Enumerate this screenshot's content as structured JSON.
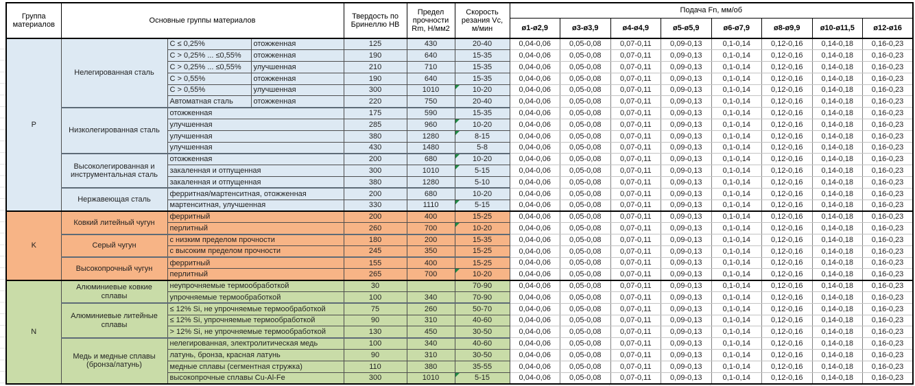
{
  "header": {
    "group": "Группа материалов",
    "main": "Основные группы материалов",
    "hardness": "Твердость по Бринеллю HB",
    "strength": "Предел прочности Rm, Н/мм2",
    "speed": "Скорость резания Vc, м/мин",
    "feed_title": "Подача Fn, мм/об",
    "feed_cols": [
      "ø1-ø2,9",
      "ø3-ø3,9",
      "ø4-ø4,9",
      "ø5-ø5,9",
      "ø6-ø7,9",
      "ø8-ø9,9",
      "ø10-ø11,5",
      "ø12-ø16"
    ]
  },
  "feed_values": [
    "0,04-0,06",
    "0,05-0,08",
    "0,07-0,11",
    "0,09-0,13",
    "0,1-0,14",
    "0,12-0,16",
    "0,14-0,18",
    "0,16-0,23"
  ],
  "colors": {
    "P": "#DDE9F3",
    "K": "#F7B486",
    "N": "#C9DCA8",
    "error_indicator": "#1F8A44"
  },
  "groups": [
    {
      "label": "P",
      "color": "#DDE9F3",
      "blocks": [
        {
          "name": "Нелегированная сталь",
          "rows": [
            {
              "d": [
                "C ≤ 0,25%",
                "отожженная"
              ],
              "hb": "125",
              "rm": "430",
              "vc": "20-40",
              "t": false
            },
            {
              "d": [
                "C > 0,25% ... ≤0,55%",
                "отожженная"
              ],
              "hb": "190",
              "rm": "640",
              "vc": "15-35",
              "t": false
            },
            {
              "d": [
                "C > 0,25% ... ≤0,55%",
                "улучшенная"
              ],
              "hb": "210",
              "rm": "710",
              "vc": "15-35",
              "t": false
            },
            {
              "d": [
                "C > 0,55%",
                "отожженная"
              ],
              "hb": "190",
              "rm": "640",
              "vc": "15-35",
              "t": false
            },
            {
              "d": [
                "C > 0,55%",
                "улучшенная"
              ],
              "hb": "300",
              "rm": "1010",
              "vc": "10-20",
              "t": true
            },
            {
              "d": [
                "Автоматная сталь",
                "отожженная"
              ],
              "hb": "220",
              "rm": "750",
              "vc": "20-40",
              "t": false
            }
          ]
        },
        {
          "name": "Низколегированная сталь",
          "rows": [
            {
              "d": [
                "отожженная"
              ],
              "hb": "175",
              "rm": "590",
              "vc": "15-35",
              "t": false
            },
            {
              "d": [
                "улучшенная"
              ],
              "hb": "285",
              "rm": "960",
              "vc": "10-20",
              "t": true
            },
            {
              "d": [
                "улучшенная"
              ],
              "hb": "380",
              "rm": "1280",
              "vc": "8-15",
              "t": true
            },
            {
              "d": [
                "улучшенная"
              ],
              "hb": "430",
              "rm": "1480",
              "vc": "5-8",
              "t": false
            }
          ]
        },
        {
          "name": "Высоколегированная и инструментальная сталь",
          "rows": [
            {
              "d": [
                "отожженная"
              ],
              "hb": "200",
              "rm": "680",
              "vc": "10-20",
              "t": true
            },
            {
              "d": [
                "закаленная и отпущенная"
              ],
              "hb": "300",
              "rm": "1010",
              "vc": "5-15",
              "t": true
            },
            {
              "d": [
                "закаленная и отпущенная"
              ],
              "hb": "380",
              "rm": "1280",
              "vc": "5-10",
              "t": false
            }
          ]
        },
        {
          "name": "Нержавеющая сталь",
          "rows": [
            {
              "d": [
                "ферритная/мартенситная, отожженная"
              ],
              "hb": "200",
              "rm": "680",
              "vc": "10-20",
              "t": false
            },
            {
              "d": [
                "мартенситная, улучшенная"
              ],
              "hb": "330",
              "rm": "1110",
              "vc": "5-15",
              "t": true
            }
          ]
        }
      ]
    },
    {
      "label": "K",
      "color": "#F7B486",
      "blocks": [
        {
          "name": "Ковкий литейный чугун",
          "rows": [
            {
              "d": [
                "ферритный"
              ],
              "hb": "200",
              "rm": "400",
              "vc": "15-25",
              "t": false
            },
            {
              "d": [
                "перлитный"
              ],
              "hb": "260",
              "rm": "700",
              "vc": "10-20",
              "t": true
            }
          ]
        },
        {
          "name": "Серый чугун",
          "rows": [
            {
              "d": [
                "с низким пределом прочности"
              ],
              "hb": "180",
              "rm": "200",
              "vc": "15-35",
              "t": false
            },
            {
              "d": [
                "с высоким пределом прочности"
              ],
              "hb": "245",
              "rm": "350",
              "vc": "15-25",
              "t": false
            }
          ]
        },
        {
          "name": "Высокопрочный чугун",
          "rows": [
            {
              "d": [
                "ферритный"
              ],
              "hb": "155",
              "rm": "400",
              "vc": "15-25",
              "t": false
            },
            {
              "d": [
                "перлитный"
              ],
              "hb": "265",
              "rm": "700",
              "vc": "10-20",
              "t": true
            }
          ]
        }
      ]
    },
    {
      "label": "N",
      "color": "#C9DCA8",
      "blocks": [
        {
          "name": "Алюминиевые ковкие сплавы",
          "rows": [
            {
              "d": [
                "неупрочняемые термообработкой"
              ],
              "hb": "30",
              "rm": "",
              "vc": "70-90",
              "t": false
            },
            {
              "d": [
                "упрочняемые термообработкой"
              ],
              "hb": "100",
              "rm": "340",
              "vc": "70-90",
              "t": false
            }
          ]
        },
        {
          "name": "Алюминиевые литейные сплавы",
          "rows": [
            {
              "d": [
                "≤ 12% Si, не упрочняемые термообработкой"
              ],
              "hb": "75",
              "rm": "260",
              "vc": "50-70",
              "t": false
            },
            {
              "d": [
                "≤ 12% Si, упрочняемые термообработкой"
              ],
              "hb": "90",
              "rm": "310",
              "vc": "40-60",
              "t": false
            },
            {
              "d": [
                "> 12% Si, не упрочняемые термообработкой"
              ],
              "hb": "130",
              "rm": "450",
              "vc": "30-50",
              "t": false
            }
          ]
        },
        {
          "name": "Медь и медные сплавы (бронза/латунь)",
          "rows": [
            {
              "d": [
                "нелегированная, электролитическая медь"
              ],
              "hb": "100",
              "rm": "340",
              "vc": "40-60",
              "t": false
            },
            {
              "d": [
                "латунь, бронза, красная латунь"
              ],
              "hb": "90",
              "rm": "310",
              "vc": "30-50",
              "t": false
            },
            {
              "d": [
                "медные сплавы (сегментная стружка)"
              ],
              "hb": "110",
              "rm": "380",
              "vc": "35-55",
              "t": false
            },
            {
              "d": [
                "высокопрочные сплавы Cu-Al-Fe"
              ],
              "hb": "300",
              "rm": "1010",
              "vc": "5-15",
              "t": true
            }
          ]
        }
      ]
    }
  ]
}
